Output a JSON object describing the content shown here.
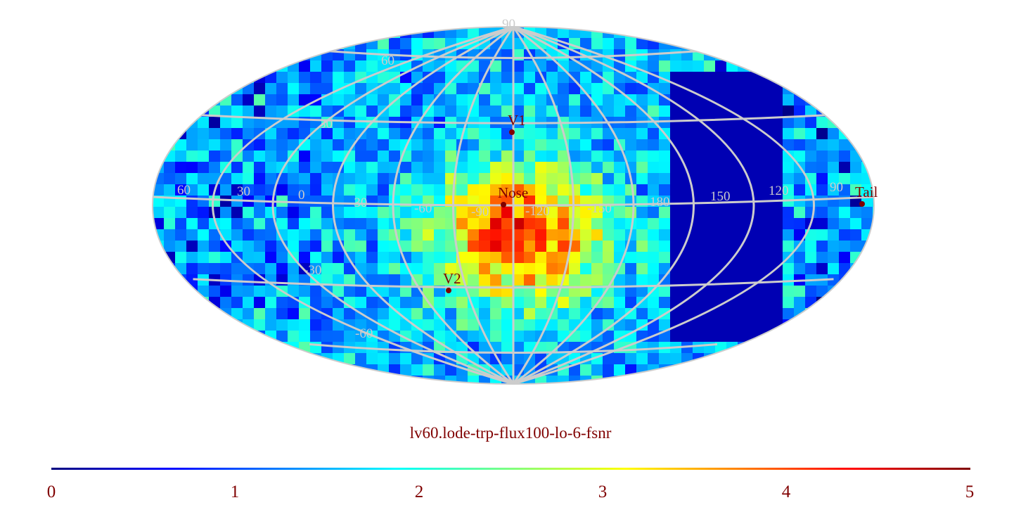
{
  "title": "lv60.lode-trp-flux100-lo-6-fsnr",
  "colors": {
    "grid": "#cccccc",
    "label": "#800000",
    "background": "#ffffff"
  },
  "colormap": "jet",
  "colorbar": {
    "ticks": [
      "0",
      "1",
      "2",
      "3",
      "4",
      "5"
    ],
    "range": [
      0,
      5
    ]
  },
  "graticule": {
    "latitude_labels": [
      "90",
      "60",
      "30",
      "-30",
      "-60"
    ],
    "longitude_labels": [
      "60",
      "30",
      "0",
      "-30",
      "-60",
      "-90",
      "-120",
      "-150",
      "180",
      "150",
      "120",
      "90"
    ]
  },
  "markers": [
    {
      "label": "V1"
    },
    {
      "label": "Nose"
    },
    {
      "label": "V2"
    },
    {
      "label": "Tail"
    }
  ]
}
